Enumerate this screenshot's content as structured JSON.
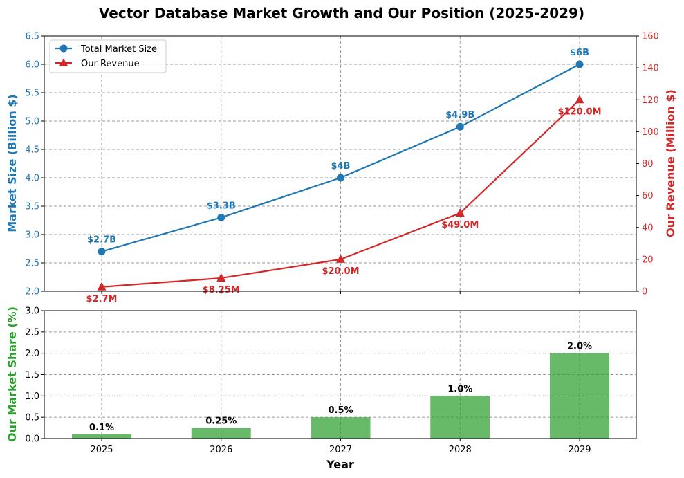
{
  "chart_data": [
    {
      "type": "line",
      "title": "Vector Database Market Growth and Our Position (2025-2029)",
      "categories": [
        "2025",
        "2026",
        "2027",
        "2028",
        "2029"
      ],
      "left_axis": {
        "label": "Market Size (Billion $)",
        "ylim": [
          2.0,
          6.5
        ],
        "ticks": [
          "2.0",
          "2.5",
          "3.0",
          "3.5",
          "4.0",
          "4.5",
          "5.0",
          "5.5",
          "6.0",
          "6.5"
        ],
        "color": "#1f77b4"
      },
      "right_axis": {
        "label": "Our Revenue (Million $)",
        "ylim": [
          0,
          160
        ],
        "ticks": [
          "0",
          "20",
          "40",
          "60",
          "80",
          "100",
          "120",
          "140",
          "160"
        ],
        "color": "#d62728"
      },
      "series": [
        {
          "name": "Total Market Size",
          "axis": "left",
          "marker": "circle",
          "color": "#1f77b4",
          "values": [
            2.7,
            3.3,
            4.0,
            4.9,
            6.0
          ],
          "labels": [
            "$2.7B",
            "$3.3B",
            "$4B",
            "$4.9B",
            "$6B"
          ]
        },
        {
          "name": "Our Revenue",
          "axis": "right",
          "marker": "triangle",
          "color": "#d62728",
          "values": [
            2.7,
            8.25,
            20.0,
            49.0,
            120.0
          ],
          "labels": [
            "$2.7M",
            "$8.25M",
            "$20.0M",
            "$49.0M",
            "$120.0M"
          ]
        }
      ],
      "legend": "top-left",
      "grid": true
    },
    {
      "type": "bar",
      "categories": [
        "2025",
        "2026",
        "2027",
        "2028",
        "2029"
      ],
      "xlabel": "Year",
      "ylabel": "Our Market Share (%)",
      "ylim": [
        0,
        3.0
      ],
      "ticks": [
        "0.0",
        "0.5",
        "1.0",
        "1.5",
        "2.0",
        "2.5",
        "3.0"
      ],
      "color": "#2ca02c",
      "values": [
        0.1,
        0.25,
        0.5,
        1.0,
        2.0
      ],
      "labels": [
        "0.1%",
        "0.25%",
        "0.5%",
        "1.0%",
        "2.0%"
      ],
      "grid": true
    }
  ]
}
